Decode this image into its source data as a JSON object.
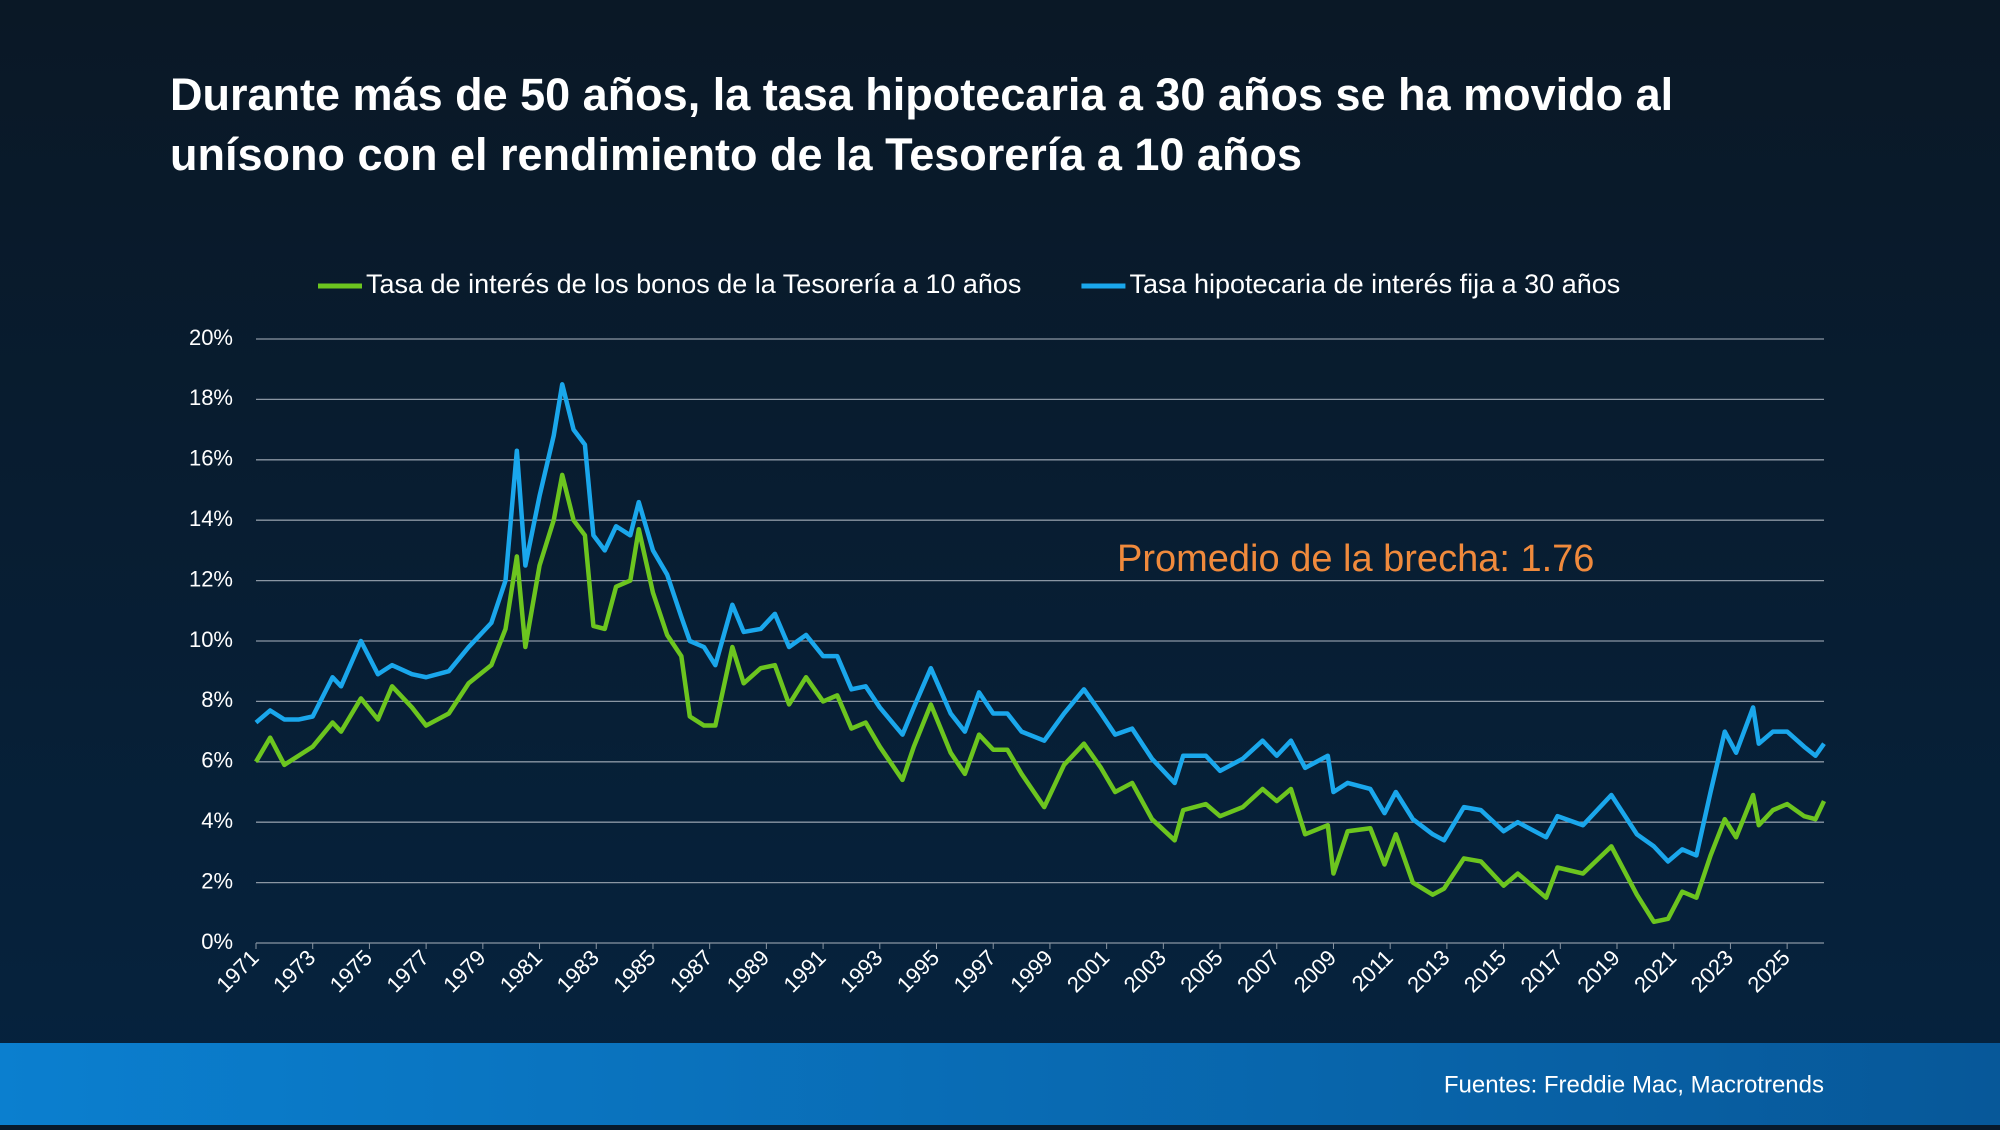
{
  "chart_data": {
    "type": "line",
    "title": "Durante más de 50 años, la tasa hipotecaria a 30 años se ha movido al unísono con el rendimiento de la Tesorería a 10 años",
    "annotation": "Promedio de la brecha: 1.76",
    "source": "Fuentes: Freddie Mac, Macrotrends",
    "x": [
      1971.0,
      1971.5,
      1972.0,
      1972.5,
      1973.0,
      1973.7,
      1974.0,
      1974.7,
      1975.3,
      1975.8,
      1976.5,
      1977.0,
      1977.8,
      1978.5,
      1979.3,
      1979.8,
      1980.2,
      1980.5,
      1981.0,
      1981.5,
      1981.8,
      1982.2,
      1982.6,
      1982.9,
      1983.3,
      1983.7,
      1984.2,
      1984.5,
      1985.0,
      1985.5,
      1986.0,
      1986.3,
      1986.8,
      1987.2,
      1987.8,
      1988.2,
      1988.8,
      1989.3,
      1989.8,
      1990.4,
      1991.0,
      1991.5,
      1992.0,
      1992.5,
      1993.0,
      1993.8,
      1994.2,
      1994.8,
      1995.5,
      1996.0,
      1996.5,
      1997.0,
      1997.5,
      1998.0,
      1998.8,
      1999.5,
      2000.2,
      2000.8,
      2001.3,
      2001.9,
      2002.6,
      2003.4,
      2003.7,
      2004.5,
      2005.0,
      2005.8,
      2006.5,
      2007.0,
      2007.5,
      2008.0,
      2008.8,
      2009.0,
      2009.5,
      2010.3,
      2010.8,
      2011.2,
      2011.8,
      2012.5,
      2012.9,
      2013.6,
      2014.2,
      2015.0,
      2015.5,
      2016.5,
      2016.9,
      2017.8,
      2018.8,
      2019.7,
      2020.3,
      2020.8,
      2021.3,
      2021.8,
      2022.3,
      2022.8,
      2023.2,
      2023.8,
      2024.0,
      2024.5,
      2025.0,
      2025.6,
      2026.0,
      2026.3
    ],
    "series": [
      {
        "name": "Tasa de interés de los bonos de la Tesorería a 10 años",
        "color": "#6cc51f",
        "values": [
          6.0,
          6.8,
          5.9,
          6.2,
          6.5,
          7.3,
          7.0,
          8.1,
          7.4,
          8.5,
          7.8,
          7.2,
          7.6,
          8.6,
          9.2,
          10.4,
          12.8,
          9.8,
          12.5,
          14.0,
          15.5,
          14.0,
          13.5,
          10.5,
          10.4,
          11.8,
          12.0,
          13.7,
          11.6,
          10.2,
          9.5,
          7.5,
          7.2,
          7.2,
          9.8,
          8.6,
          9.1,
          9.2,
          7.9,
          8.8,
          8.0,
          8.2,
          7.1,
          7.3,
          6.5,
          5.4,
          6.5,
          7.9,
          6.3,
          5.6,
          6.9,
          6.4,
          6.4,
          5.6,
          4.5,
          5.9,
          6.6,
          5.8,
          5.0,
          5.3,
          4.1,
          3.4,
          4.4,
          4.6,
          4.2,
          4.5,
          5.1,
          4.7,
          5.1,
          3.6,
          3.9,
          2.3,
          3.7,
          3.8,
          2.6,
          3.6,
          2.0,
          1.6,
          1.8,
          2.8,
          2.7,
          1.9,
          2.3,
          1.5,
          2.5,
          2.3,
          3.2,
          1.6,
          0.7,
          0.8,
          1.7,
          1.5,
          2.9,
          4.1,
          3.5,
          4.9,
          3.9,
          4.4,
          4.6,
          4.2,
          4.1,
          4.7
        ]
      },
      {
        "name": "Tasa hipotecaria de interés fija a 30 años",
        "color": "#1aa7ec",
        "values": [
          7.3,
          7.7,
          7.4,
          7.4,
          7.5,
          8.8,
          8.5,
          10.0,
          8.9,
          9.2,
          8.9,
          8.8,
          9.0,
          9.8,
          10.6,
          12.0,
          16.3,
          12.5,
          14.8,
          16.8,
          18.5,
          17.0,
          16.5,
          13.5,
          13.0,
          13.8,
          13.5,
          14.6,
          13.0,
          12.2,
          10.8,
          10.0,
          9.8,
          9.2,
          11.2,
          10.3,
          10.4,
          10.9,
          9.8,
          10.2,
          9.5,
          9.5,
          8.4,
          8.5,
          7.8,
          6.9,
          7.8,
          9.1,
          7.6,
          7.0,
          8.3,
          7.6,
          7.6,
          7.0,
          6.7,
          7.6,
          8.4,
          7.6,
          6.9,
          7.1,
          6.1,
          5.3,
          6.2,
          6.2,
          5.7,
          6.1,
          6.7,
          6.2,
          6.7,
          5.8,
          6.2,
          5.0,
          5.3,
          5.1,
          4.3,
          5.0,
          4.1,
          3.6,
          3.4,
          4.5,
          4.4,
          3.7,
          4.0,
          3.5,
          4.2,
          3.9,
          4.9,
          3.6,
          3.2,
          2.7,
          3.1,
          2.9,
          5.0,
          7.0,
          6.3,
          7.8,
          6.6,
          7.0,
          7.0,
          6.5,
          6.2,
          6.6
        ]
      }
    ],
    "xlim": [
      1971,
      2026.3
    ],
    "xticks": [
      1971,
      1973,
      1975,
      1977,
      1979,
      1981,
      1983,
      1985,
      1987,
      1989,
      1991,
      1993,
      1995,
      1997,
      1999,
      2001,
      2003,
      2005,
      2007,
      2009,
      2011,
      2013,
      2015,
      2017,
      2019,
      2021,
      2023,
      2025
    ],
    "ylim": [
      0,
      20
    ],
    "yticks": [
      {
        "value": 0,
        "label": "0%"
      },
      {
        "value": 2,
        "label": "2%"
      },
      {
        "value": 4,
        "label": "4%"
      },
      {
        "value": 6,
        "label": "6%"
      },
      {
        "value": 8,
        "label": "8%"
      },
      {
        "value": 10,
        "label": "10%"
      },
      {
        "value": 12,
        "label": "12%"
      },
      {
        "value": 14,
        "label": "14%"
      },
      {
        "value": 16,
        "label": "16%"
      },
      {
        "value": 18,
        "label": "18%"
      },
      {
        "value": 20,
        "label": "20%"
      }
    ],
    "grid": true,
    "legend": "top",
    "annotation_color": "#f08a3c"
  }
}
